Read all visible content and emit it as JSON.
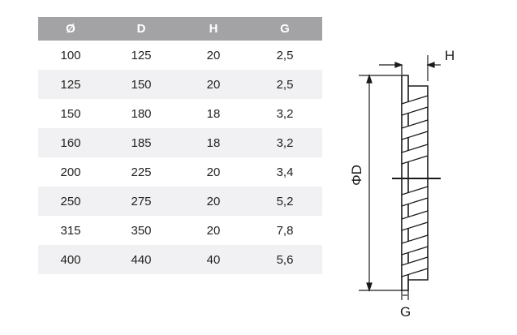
{
  "table": {
    "headers": [
      "Ø",
      "D",
      "H",
      "G"
    ],
    "rows": [
      [
        "100",
        "125",
        "20",
        "2,5"
      ],
      [
        "125",
        "150",
        "20",
        "2,5"
      ],
      [
        "150",
        "180",
        "18",
        "3,2"
      ],
      [
        "160",
        "185",
        "18",
        "3,2"
      ],
      [
        "200",
        "225",
        "20",
        "3,4"
      ],
      [
        "250",
        "275",
        "20",
        "5,2"
      ],
      [
        "315",
        "350",
        "20",
        "7,8"
      ],
      [
        "400",
        "440",
        "40",
        "5,6"
      ]
    ]
  },
  "drawing": {
    "label_h": "H",
    "label_d": "ΦD",
    "label_g": "G"
  },
  "colors": {
    "header_bg": "#a3a3a6",
    "row_alt_bg": "#f1f1f3",
    "line": "#1a1a1a"
  }
}
